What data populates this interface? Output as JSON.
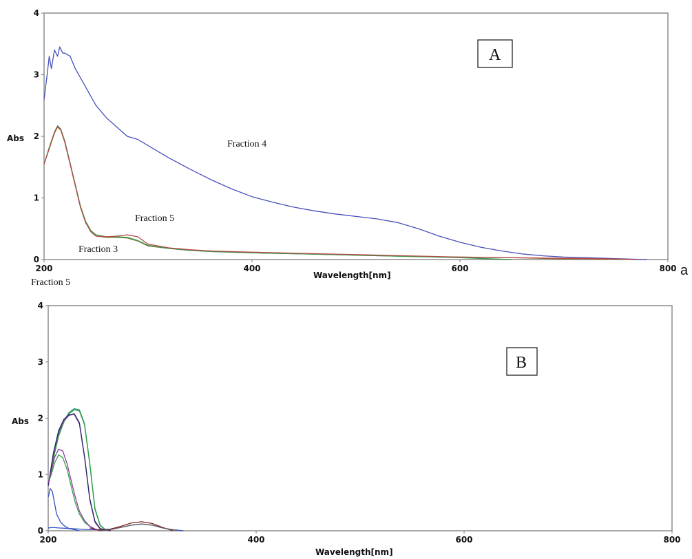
{
  "chart_data": [
    {
      "type": "line",
      "panel_label": "A",
      "side_label": "a",
      "xlabel": "Wavelength[nm]",
      "ylabel": "Abs",
      "xlim": [
        200,
        800
      ],
      "ylim": [
        0,
        4
      ],
      "x_ticks": [
        "200",
        "400",
        "600",
        "800"
      ],
      "y_ticks": [
        "0",
        "1",
        "2",
        "3",
        "4"
      ],
      "grid": false,
      "annotations": [
        "Fraction 4",
        "Fraction 5",
        "Fraction 3",
        "Fraction 5"
      ],
      "colors": {
        "frame": "#8c8c8c",
        "blue": "#4650b8",
        "olive": "#8a7a3a",
        "green": "#2e9a4a",
        "red": "#b84a4a"
      },
      "series": [
        {
          "color": "blue",
          "x": [
            200,
            203,
            205,
            207,
            210,
            213,
            215,
            218,
            220,
            225,
            230,
            240,
            250,
            260,
            270,
            280,
            290,
            300,
            320,
            340,
            360,
            380,
            400,
            420,
            440,
            460,
            480,
            500,
            520,
            540,
            560,
            580,
            600,
            620,
            640,
            660,
            680,
            700,
            720,
            740,
            760,
            780
          ],
          "y": [
            2.6,
            3.0,
            3.3,
            3.1,
            3.4,
            3.3,
            3.45,
            3.35,
            3.35,
            3.3,
            3.1,
            2.8,
            2.5,
            2.3,
            2.15,
            2.0,
            1.95,
            1.85,
            1.65,
            1.47,
            1.3,
            1.15,
            1.02,
            0.93,
            0.85,
            0.79,
            0.74,
            0.7,
            0.66,
            0.6,
            0.5,
            0.38,
            0.28,
            0.2,
            0.14,
            0.09,
            0.06,
            0.04,
            0.03,
            0.02,
            0.01,
            0.0
          ]
        },
        {
          "color": "olive",
          "x": [
            200,
            205,
            210,
            213,
            216,
            220,
            225,
            230,
            235,
            240,
            245,
            250,
            260,
            270,
            280,
            290,
            300,
            320,
            340,
            360,
            380,
            400,
            450,
            500,
            550,
            600,
            650,
            700,
            770
          ],
          "y": [
            1.55,
            1.8,
            2.05,
            2.15,
            2.1,
            1.9,
            1.55,
            1.2,
            0.85,
            0.6,
            0.45,
            0.38,
            0.36,
            0.36,
            0.35,
            0.3,
            0.22,
            0.18,
            0.15,
            0.13,
            0.12,
            0.11,
            0.09,
            0.07,
            0.05,
            0.04,
            0.03,
            0.01,
            0.0
          ]
        },
        {
          "color": "green",
          "x": [
            200,
            205,
            210,
            213,
            216,
            220,
            225,
            230,
            235,
            240,
            245,
            250,
            260,
            270,
            280,
            290,
            300,
            320,
            340,
            360,
            380,
            400,
            450,
            500,
            550,
            600,
            650
          ],
          "y": [
            1.55,
            1.82,
            2.07,
            2.17,
            2.12,
            1.92,
            1.57,
            1.22,
            0.87,
            0.62,
            0.47,
            0.4,
            0.37,
            0.37,
            0.36,
            0.31,
            0.23,
            0.18,
            0.15,
            0.13,
            0.12,
            0.11,
            0.09,
            0.07,
            0.05,
            0.03,
            0.0
          ]
        },
        {
          "color": "red",
          "x": [
            200,
            205,
            210,
            213,
            216,
            220,
            225,
            230,
            235,
            240,
            245,
            250,
            260,
            270,
            280,
            290,
            300,
            320,
            340,
            360,
            380,
            400,
            450,
            500,
            550,
            600,
            650,
            700,
            750,
            770
          ],
          "y": [
            1.55,
            1.8,
            2.06,
            2.16,
            2.11,
            1.9,
            1.55,
            1.2,
            0.85,
            0.6,
            0.45,
            0.38,
            0.37,
            0.38,
            0.4,
            0.37,
            0.25,
            0.19,
            0.16,
            0.14,
            0.13,
            0.12,
            0.1,
            0.08,
            0.06,
            0.04,
            0.03,
            0.02,
            0.01,
            0.0
          ]
        }
      ]
    },
    {
      "type": "line",
      "panel_label": "B",
      "xlabel": "Wavelength[nm]",
      "ylabel": "Abs",
      "xlim": [
        200,
        800
      ],
      "ylim": [
        0,
        4
      ],
      "x_ticks": [
        "200",
        "400",
        "600",
        "800"
      ],
      "y_ticks": [
        "0",
        "1",
        "2",
        "3",
        "4"
      ],
      "grid": false,
      "colors": {
        "frame": "#8c8c8c",
        "blue": "#3050c0",
        "navy": "#2a2a70",
        "green": "#30a040",
        "teal": "#209080",
        "purple": "#8a3a9a",
        "darkred": "#802020",
        "gray": "#606060"
      },
      "series": [
        {
          "color": "teal",
          "x": [
            200,
            205,
            210,
            215,
            220,
            225,
            230,
            235,
            240,
            245,
            250,
            255,
            260
          ],
          "y": [
            0.8,
            1.3,
            1.7,
            1.95,
            2.1,
            2.17,
            2.15,
            1.9,
            1.2,
            0.4,
            0.1,
            0.02,
            0.0
          ]
        },
        {
          "color": "green",
          "x": [
            200,
            205,
            210,
            215,
            220,
            225,
            230,
            235,
            240,
            245,
            250,
            255,
            260
          ],
          "y": [
            0.8,
            1.28,
            1.68,
            1.93,
            2.08,
            2.15,
            2.13,
            1.88,
            1.18,
            0.38,
            0.09,
            0.02,
            0.0
          ]
        },
        {
          "color": "purple",
          "x": [
            200,
            205,
            210,
            215,
            220,
            225,
            230,
            235,
            240,
            245,
            250,
            260
          ],
          "y": [
            0.8,
            1.35,
            1.75,
            1.95,
            2.05,
            2.07,
            1.9,
            1.3,
            0.55,
            0.15,
            0.03,
            0.0
          ]
        },
        {
          "color": "navy",
          "x": [
            200,
            205,
            210,
            215,
            220,
            225,
            230,
            235,
            240,
            245,
            250,
            260
          ],
          "y": [
            0.8,
            1.38,
            1.78,
            1.98,
            2.06,
            2.08,
            1.92,
            1.32,
            0.57,
            0.17,
            0.04,
            0.0
          ]
        },
        {
          "color": "green",
          "x": [
            200,
            203,
            206,
            210,
            214,
            218,
            222,
            226,
            230,
            235,
            240,
            245,
            250
          ],
          "y": [
            0.85,
            1.0,
            1.2,
            1.35,
            1.3,
            1.1,
            0.8,
            0.5,
            0.3,
            0.15,
            0.08,
            0.03,
            0.0
          ]
        },
        {
          "color": "purple",
          "x": [
            200,
            203,
            206,
            210,
            214,
            218,
            222,
            226,
            230,
            235,
            240,
            245,
            250
          ],
          "y": [
            0.85,
            1.05,
            1.3,
            1.45,
            1.42,
            1.2,
            0.9,
            0.6,
            0.35,
            0.18,
            0.08,
            0.03,
            0.0
          ]
        },
        {
          "color": "blue",
          "x": [
            200,
            202,
            204,
            206,
            208,
            212,
            216,
            220,
            225,
            230
          ],
          "y": [
            0.6,
            0.75,
            0.7,
            0.5,
            0.3,
            0.15,
            0.08,
            0.04,
            0.02,
            0.0
          ]
        },
        {
          "color": "blue",
          "x": [
            200,
            205,
            210,
            220,
            230,
            240,
            250,
            260,
            270,
            280,
            290,
            300,
            310,
            320,
            330
          ],
          "y": [
            0.05,
            0.06,
            0.05,
            0.04,
            0.03,
            0.02,
            0.02,
            0.03,
            0.06,
            0.1,
            0.12,
            0.1,
            0.05,
            0.02,
            0.0
          ]
        },
        {
          "color": "darkred",
          "x": [
            240,
            250,
            260,
            270,
            280,
            290,
            300,
            310,
            320
          ],
          "y": [
            0.05,
            0.01,
            0.03,
            0.08,
            0.14,
            0.16,
            0.13,
            0.06,
            0.0
          ]
        },
        {
          "color": "gray",
          "x": [
            250,
            260,
            270,
            280,
            290,
            300,
            310,
            325
          ],
          "y": [
            0.0,
            0.02,
            0.06,
            0.1,
            0.12,
            0.1,
            0.05,
            0.0
          ]
        }
      ]
    }
  ]
}
